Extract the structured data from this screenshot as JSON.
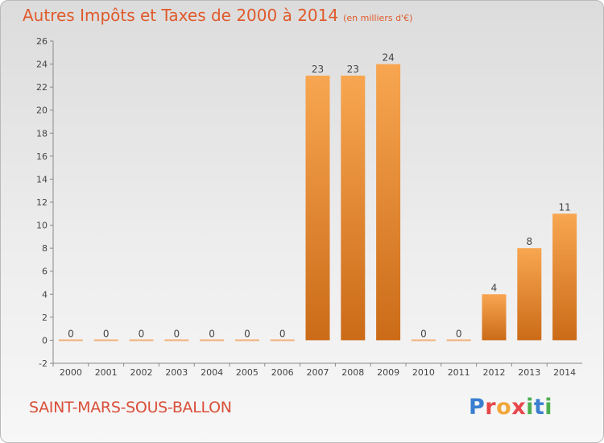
{
  "header": {
    "title": "Autres Impôts et Taxes de 2000 à 2014",
    "unit": "(en milliers d'€)"
  },
  "footer": {
    "commune": "SAINT-MARS-SOUS-BALLON",
    "logo_letters": [
      {
        "ch": "P",
        "color": "#3a7fd0"
      },
      {
        "ch": "r",
        "color": "#e8474a"
      },
      {
        "ch": "o",
        "color": "#f2a73b"
      },
      {
        "ch": "x",
        "color": "#e8474a"
      },
      {
        "ch": "i",
        "color": "#4caf50"
      },
      {
        "ch": "t",
        "color": "#3a7fd0"
      },
      {
        "ch": "i",
        "color": "#4caf50"
      }
    ]
  },
  "chart_data": {
    "type": "bar",
    "title": "Autres Impôts et Taxes de 2000 à 2014",
    "categories": [
      "2000",
      "2001",
      "2002",
      "2003",
      "2004",
      "2005",
      "2006",
      "2007",
      "2008",
      "2009",
      "2010",
      "2011",
      "2012",
      "2013",
      "2014"
    ],
    "values": [
      0,
      0,
      0,
      0,
      0,
      0,
      0,
      23,
      23,
      24,
      0,
      0,
      4,
      8,
      11
    ],
    "ylim": [
      -2,
      26
    ],
    "yticks": [
      -2,
      0,
      2,
      4,
      6,
      8,
      10,
      12,
      14,
      16,
      18,
      20,
      22,
      24,
      26
    ],
    "grid": false,
    "colors": {
      "bar_light": "#f8a651",
      "bar_dark": "#cb6b18",
      "zero_bar": "#f2b27a"
    }
  }
}
